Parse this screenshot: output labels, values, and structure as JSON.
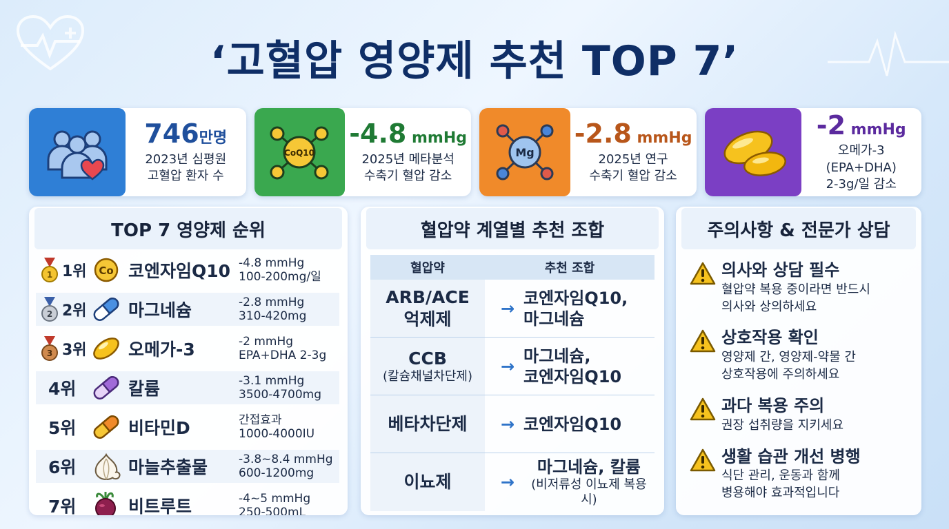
{
  "title": "‘고혈압 영양제 추천 TOP 7’",
  "stats": [
    {
      "value": "746",
      "unit": "만명",
      "desc1": "2023년 심평원",
      "desc2": "고혈압 환자 수",
      "color": "#1f4f9c",
      "icon": "patients-icon",
      "bg": "#2f7fd6"
    },
    {
      "value": "-4.8",
      "unit": " mmHg",
      "desc1": "2025년 메타분석",
      "desc2": "수축기 혈압 감소",
      "color": "#1f7a34",
      "icon": "coq10-molecule-icon",
      "icon_label": "CoQ10",
      "bg": "#3aa84f"
    },
    {
      "value": "-2.8",
      "unit": " mmHg",
      "desc1": "2025년 연구",
      "desc2": "수축기 혈압 감소",
      "color": "#b8561a",
      "icon": "magnesium-molecule-icon",
      "icon_label": "Mg",
      "bg": "#f08a2a"
    },
    {
      "value": "-2",
      "unit": " mmHg",
      "desc1": "오메가-3 (EPA+DHA)",
      "desc2": "2-3g/일 감소",
      "color": "#5b2a9e",
      "icon": "omega3-capsule-icon",
      "bg": "#7b3fc4"
    }
  ],
  "ranking": {
    "heading": "TOP 7 영양제 순위",
    "items": [
      {
        "rank": "1위",
        "name": "코엔자임Q10",
        "info1": "-4.8 mmHg",
        "info2": "100-200mg/일",
        "icon": "coq10-icon",
        "icon_label": "Co",
        "medal": "gold-medal-icon"
      },
      {
        "rank": "2위",
        "name": "마그네슘",
        "info1": "-2.8 mmHg",
        "info2": "310-420mg",
        "icon": "magnesium-capsule-icon",
        "medal": "silver-medal-icon"
      },
      {
        "rank": "3위",
        "name": "오메가-3",
        "info1": "-2 mmHg",
        "info2": "EPA+DHA 2-3g",
        "icon": "omega3-icon",
        "medal": "bronze-medal-icon"
      },
      {
        "rank": "4위",
        "name": "칼륨",
        "info1": "-3.1 mmHg",
        "info2": "3500-4700mg",
        "icon": "potassium-capsule-icon"
      },
      {
        "rank": "5위",
        "name": "비타민D",
        "info1": "간접효과",
        "info2": "1000-4000IU",
        "icon": "vitamin-d-capsule-icon"
      },
      {
        "rank": "6위",
        "name": "마늘추출물",
        "info1": "-3.8~8.4 mmHg",
        "info2": "600-1200mg",
        "icon": "garlic-icon"
      },
      {
        "rank": "7위",
        "name": "비트루트",
        "info1": "-4~5 mmHg",
        "info2": "250-500mL",
        "icon": "beetroot-icon"
      }
    ]
  },
  "combo": {
    "heading": "혈압약 계열별 추천 조합",
    "col1": "혈압약",
    "col2": "추천 조합",
    "rows": [
      {
        "drug": "ARB/ACE",
        "drug2": "억제제",
        "drug_sub": "",
        "rec1": "코엔자임Q10,",
        "rec2": "마그네슘",
        "rec_sub": ""
      },
      {
        "drug": "CCB",
        "drug2": "",
        "drug_sub": "(칼슘채널차단제)",
        "rec1": "마그네슘,",
        "rec2": "코엔자임Q10",
        "rec_sub": ""
      },
      {
        "drug": "베타차단제",
        "drug2": "",
        "drug_sub": "",
        "rec1": "코엔자임Q10",
        "rec2": "",
        "rec_sub": ""
      },
      {
        "drug": "이뇨제",
        "drug2": "",
        "drug_sub": "",
        "rec1": "마그네슘, 칼륨",
        "rec2": "",
        "rec_sub": "(비저류성 이뇨제 복용시)"
      }
    ],
    "arrow": "→"
  },
  "caution": {
    "heading": "주의사항 & 전문가 상담",
    "items": [
      {
        "title": "의사와 상담 필수",
        "text1": "혈압약 복용 중이라면 반드시",
        "text2": "의사와 상의하세요"
      },
      {
        "title": "상호작용 확인",
        "text1": "영양제 간, 영양제-약물 간",
        "text2": "상호작용에 주의하세요"
      },
      {
        "title": "과다 복용 주의",
        "text1": "권장 섭취량을 지키세요",
        "text2": ""
      },
      {
        "title": "생활 습관 개선 병행",
        "text1": "식단 관리, 운동과 함께",
        "text2": "병용해야 효과적입니다"
      }
    ]
  }
}
